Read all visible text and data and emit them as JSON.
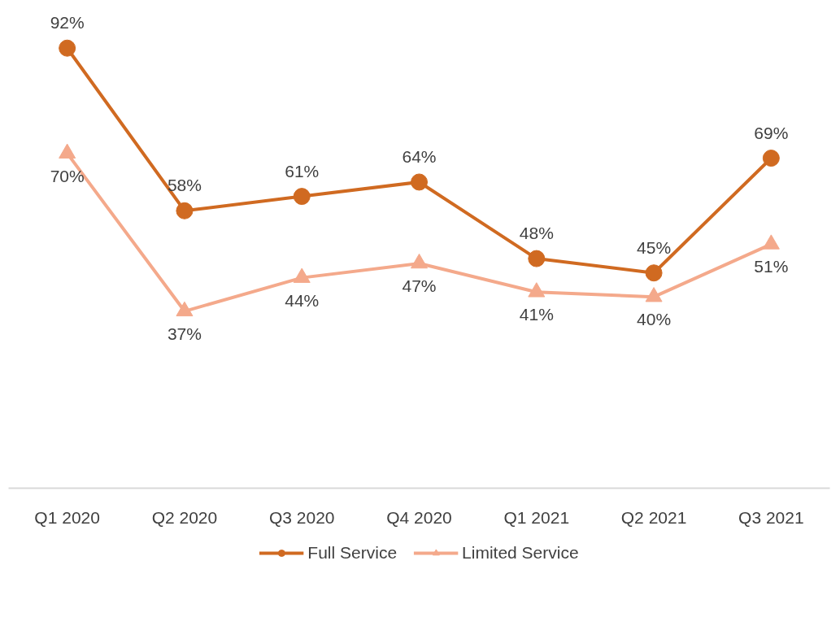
{
  "chart_data": {
    "type": "line",
    "categories": [
      "Q1 2020",
      "Q2 2020",
      "Q3 2020",
      "Q4 2020",
      "Q1 2021",
      "Q2 2021",
      "Q3 2021"
    ],
    "series": [
      {
        "name": "Full Service",
        "color": "#d06a21",
        "marker": "circle",
        "values": [
          92,
          58,
          61,
          64,
          48,
          45,
          69
        ],
        "value_labels": [
          "92%",
          "58%",
          "61%",
          "64%",
          "48%",
          "45%",
          "69%"
        ]
      },
      {
        "name": "Limited Service",
        "color": "#f4a98b",
        "marker": "triangle",
        "values": [
          70,
          37,
          44,
          47,
          41,
          40,
          51
        ],
        "value_labels": [
          "70%",
          "37%",
          "44%",
          "47%",
          "41%",
          "40%",
          "51%"
        ]
      }
    ],
    "grid": false,
    "legend": "bottom",
    "tick_labels": "x",
    "line_style": "solid"
  }
}
